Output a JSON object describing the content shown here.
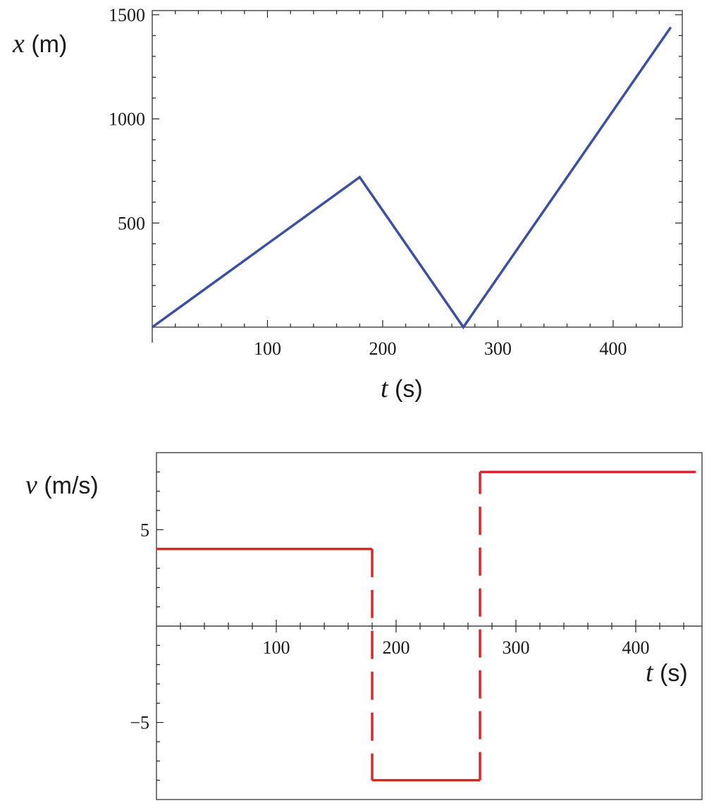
{
  "chart_data": [
    {
      "type": "line",
      "xlabel": "t (s)",
      "ylabel": "x (m)",
      "xlabel_parts": {
        "var": "t",
        "unit": " (s)"
      },
      "ylabel_parts": {
        "var": "x",
        "unit": " (m)"
      },
      "xlim": [
        0,
        460
      ],
      "ylim": [
        0,
        1520
      ],
      "x_ticks": [
        100,
        200,
        300,
        400
      ],
      "y_ticks": [
        500,
        1000,
        1500
      ],
      "grid": false,
      "series": [
        {
          "color": "#3b4fa3",
          "x": [
            0,
            180,
            270,
            450
          ],
          "values": [
            0,
            720,
            0,
            1440
          ]
        }
      ]
    },
    {
      "type": "line",
      "xlabel": "t (s)",
      "ylabel": "v (m/s)",
      "xlabel_parts": {
        "var": "t",
        "unit": " (s)"
      },
      "ylabel_parts": {
        "var": "v",
        "unit": " (m/s)"
      },
      "xlim": [
        0,
        460
      ],
      "ylim": [
        -9,
        9
      ],
      "x_ticks": [
        100,
        200,
        300,
        400
      ],
      "y_ticks": [
        -5,
        5
      ],
      "y_tick_labels": [
        "−5",
        "5"
      ],
      "grid": false,
      "series": [
        {
          "color": "#d9262b",
          "style": "step",
          "x": [
            0,
            180,
            180,
            270,
            270,
            450
          ],
          "values": [
            4,
            4,
            -8,
            -8,
            8,
            8
          ]
        }
      ]
    }
  ]
}
